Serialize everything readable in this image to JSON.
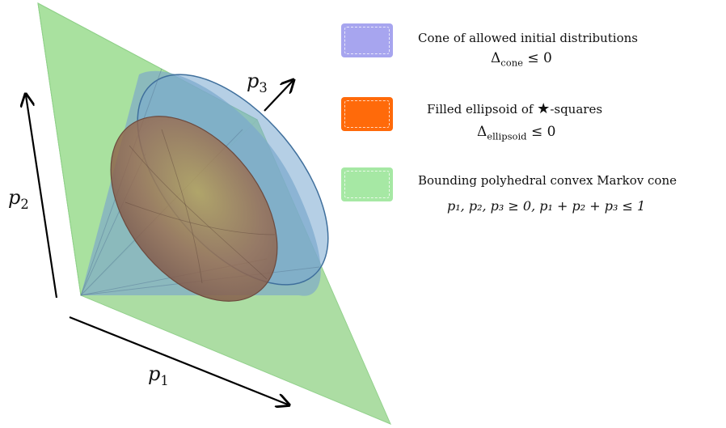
{
  "axes": {
    "p1": {
      "var": "p",
      "sub": "1"
    },
    "p2": {
      "var": "p",
      "sub": "2"
    },
    "p3": {
      "var": "p",
      "sub": "3"
    }
  },
  "legend": [
    {
      "label": "Cone of allowed initial distributions",
      "formula_symbol": "Δ",
      "formula_sub": "cone",
      "formula_rest": " ≤ 0",
      "color": "#a7a5ef"
    },
    {
      "label_before_star": "Filled ellipsoid of ",
      "star": "★",
      "label_after_star": "-squares",
      "formula_symbol": "Δ",
      "formula_sub": "ellipsoid",
      "formula_rest": " ≤ 0",
      "color": "#ff6a0a"
    },
    {
      "label": "Bounding polyhedral convex Markov cone",
      "formula": "p₁, p₂, p₃ ≥ 0,  p₁ + p₂ + p₃ ≤ 1",
      "color": "#a6e8a4"
    }
  ]
}
